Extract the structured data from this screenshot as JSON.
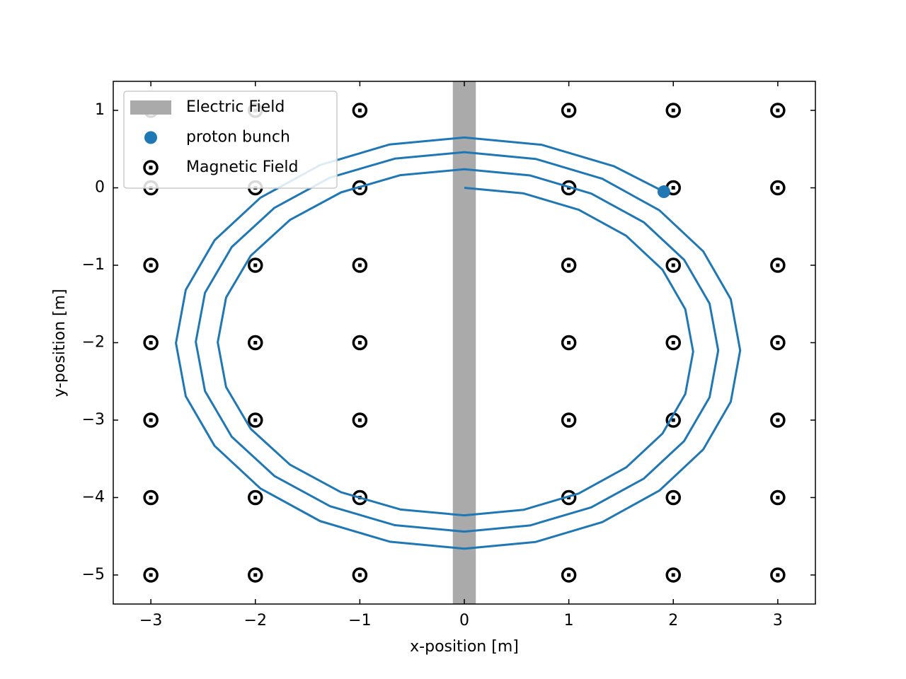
{
  "chart_data": {
    "type": "line",
    "xlabel": "x-position [m]",
    "ylabel": "y-position [m]",
    "xlim": [
      -3.36,
      3.36
    ],
    "ylim": [
      -5.375,
      1.375
    ],
    "xticks": [
      {
        "value": -3,
        "label": "−3"
      },
      {
        "value": -2,
        "label": "−2"
      },
      {
        "value": -1,
        "label": "−1"
      },
      0,
      1,
      2,
      3
    ],
    "yticks": [
      {
        "value": -5,
        "label": "−5"
      },
      {
        "value": -4,
        "label": "−4"
      },
      {
        "value": -3,
        "label": "−3"
      },
      {
        "value": -2,
        "label": "−2"
      },
      {
        "value": -1,
        "label": "−1"
      },
      0,
      1
    ],
    "legend": "upper left",
    "span": {
      "name": "Electric Field",
      "color": "#aaaaaa",
      "x": [
        -0.11,
        0.11
      ]
    },
    "trajectory": {
      "color": "#1f77b4",
      "x": [
        0,
        0.567,
        1.095,
        1.549,
        1.897,
        2.115,
        2.19,
        2.115,
        1.897,
        1.549,
        1.095,
        0.567,
        0,
        -0.611,
        -1.18,
        -1.669,
        -2.044,
        -2.28,
        -2.36,
        -2.28,
        -2.044,
        -1.669,
        -1.18,
        -0.611,
        0,
        0.629,
        1.215,
        1.718,
        2.104,
        2.347,
        2.43,
        2.347,
        2.104,
        1.718,
        1.215,
        0.629,
        0,
        -0.665,
        -1.285,
        -1.817,
        -2.226,
        -2.482,
        -2.57,
        -2.482,
        -2.226,
        -1.817,
        -1.285,
        -0.665,
        0,
        0.683,
        1.32,
        1.867,
        2.286,
        2.55,
        2.64,
        2.55,
        2.286,
        1.867,
        1.32,
        0.683,
        0,
        -0.714,
        -1.38,
        -1.952,
        -2.39,
        -2.666,
        -2.76,
        -2.666,
        -2.39,
        -1.952,
        -1.38,
        -0.714,
        0,
        0.74,
        1.43,
        1.91
      ],
      "y": [
        0,
        -0.072,
        -0.283,
        -0.619,
        -1.058,
        -1.568,
        -2.115,
        -2.662,
        -3.173,
        -3.611,
        -3.947,
        -4.158,
        -4.23,
        -4.154,
        -3.931,
        -3.575,
        -3.113,
        -2.573,
        -1.995,
        -1.417,
        -0.877,
        -0.415,
        -0.059,
        0.164,
        0.24,
        0.16,
        -0.074,
        -0.445,
        -0.93,
        -1.494,
        -2.1,
        -2.706,
        -3.27,
        -3.755,
        -4.126,
        -4.36,
        -4.44,
        -4.357,
        -4.112,
        -3.722,
        -3.215,
        -2.624,
        -1.99,
        -1.356,
        -0.765,
        -0.258,
        0.132,
        0.377,
        0.46,
        0.373,
        0.117,
        -0.29,
        -0.82,
        -1.437,
        -2.1,
        -2.763,
        -3.38,
        -3.91,
        -4.317,
        -4.573,
        -4.66,
        -4.57,
        -4.304,
        -3.882,
        -3.333,
        -2.692,
        -2.005,
        -1.318,
        -0.677,
        -0.128,
        0.294,
        0.56,
        0.65,
        0.556,
        0.28,
        -0.05
      ]
    },
    "series": [
      {
        "name": "proton bunch",
        "type": "scatter",
        "marker": "dot",
        "color": "#1f77b4",
        "x": [
          1.91
        ],
        "y": [
          -0.05
        ]
      },
      {
        "name": "Magnetic Field",
        "type": "scatter",
        "marker": "odot",
        "color": "#000000",
        "x": [
          -3,
          -3,
          -3,
          -3,
          -3,
          -3,
          -3,
          -2,
          -2,
          -2,
          -2,
          -2,
          -2,
          -2,
          -1,
          -1,
          -1,
          -1,
          -1,
          -1,
          -1,
          1,
          1,
          1,
          1,
          1,
          1,
          1,
          2,
          2,
          2,
          2,
          2,
          2,
          2,
          3,
          3,
          3,
          3,
          3,
          3,
          3
        ],
        "y": [
          1,
          0,
          -1,
          -2,
          -3,
          -4,
          -5,
          1,
          0,
          -1,
          -2,
          -3,
          -4,
          -5,
          1,
          0,
          -1,
          -2,
          -3,
          -4,
          -5,
          1,
          0,
          -1,
          -2,
          -3,
          -4,
          -5,
          1,
          0,
          -1,
          -2,
          -3,
          -4,
          -5,
          1,
          0,
          -1,
          -2,
          -3,
          -4,
          -5
        ]
      }
    ]
  }
}
